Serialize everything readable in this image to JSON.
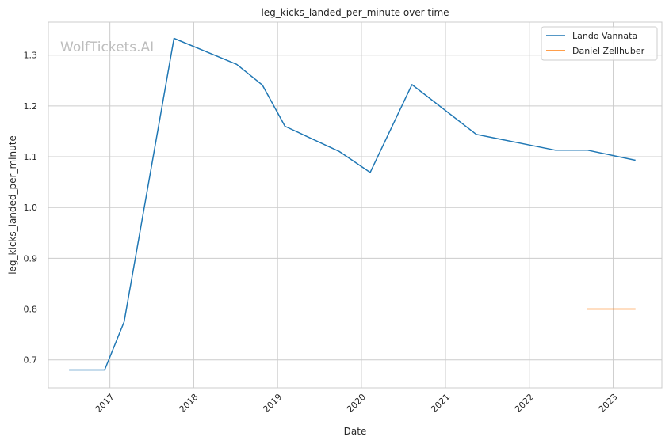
{
  "chart_data": {
    "type": "line",
    "title": "leg_kicks_landed_per_minute over time",
    "xlabel": "Date",
    "ylabel": "leg_kicks_landed_per_minute",
    "watermark": "WolfTickets.AI",
    "xlim": [
      "2016-04-08",
      "2023-08-01"
    ],
    "ylim": [
      0.645,
      1.365
    ],
    "x_ticks": [
      "2017-01-01",
      "2018-01-01",
      "2019-01-01",
      "2020-01-01",
      "2021-01-01",
      "2022-01-01",
      "2023-01-01"
    ],
    "x_tick_labels": [
      "2017",
      "2018",
      "2019",
      "2020",
      "2021",
      "2022",
      "2023"
    ],
    "y_ticks": [
      0.7,
      0.8,
      0.9,
      1.0,
      1.1,
      1.2,
      1.3
    ],
    "y_tick_labels": [
      "0.7",
      "0.8",
      "0.9",
      "1.0",
      "1.1",
      "1.2",
      "1.3"
    ],
    "grid": true,
    "legend_position": "top-right",
    "series": [
      {
        "name": "Lando Vannata",
        "color": "#1f77b4",
        "points": [
          {
            "x": "2016-07-07",
            "y": 0.68
          },
          {
            "x": "2016-12-09",
            "y": 0.68
          },
          {
            "x": "2017-03-04",
            "y": 0.775
          },
          {
            "x": "2017-10-07",
            "y": 1.333
          },
          {
            "x": "2018-07-07",
            "y": 1.282
          },
          {
            "x": "2018-10-27",
            "y": 1.241
          },
          {
            "x": "2019-02-02",
            "y": 1.16
          },
          {
            "x": "2019-09-28",
            "y": 1.11
          },
          {
            "x": "2020-02-08",
            "y": 1.069
          },
          {
            "x": "2020-08-08",
            "y": 1.242
          },
          {
            "x": "2021-05-15",
            "y": 1.144
          },
          {
            "x": "2022-04-23",
            "y": 1.113
          },
          {
            "x": "2022-09-10",
            "y": 1.113
          },
          {
            "x": "2023-04-08",
            "y": 1.093
          }
        ]
      },
      {
        "name": "Daniel Zellhuber",
        "color": "#ff7f0e",
        "points": [
          {
            "x": "2022-09-10",
            "y": 0.8
          },
          {
            "x": "2023-04-08",
            "y": 0.8
          }
        ]
      }
    ]
  }
}
